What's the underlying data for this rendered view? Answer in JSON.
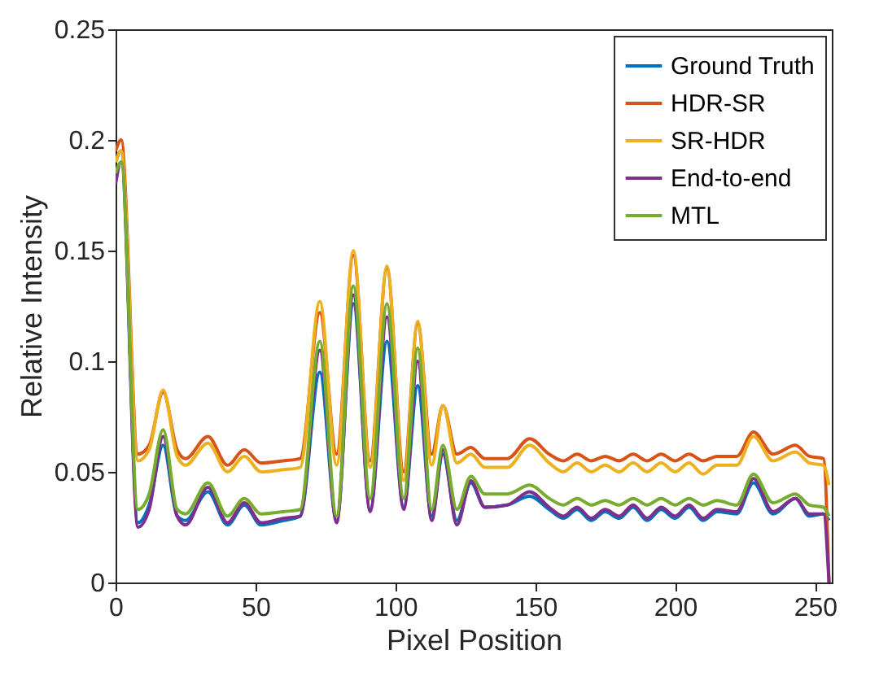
{
  "chart_data": {
    "type": "line",
    "xlabel": "Pixel Position",
    "ylabel": "Relative Intensity",
    "x": [
      0,
      2,
      8,
      12,
      17,
      22,
      25,
      33,
      40,
      46,
      52,
      60,
      66,
      73,
      79,
      85,
      91,
      97,
      103,
      108,
      113,
      117,
      122,
      127,
      132,
      140,
      148,
      155,
      160,
      165,
      170,
      175,
      180,
      185,
      190,
      195,
      200,
      205,
      210,
      215,
      222,
      228,
      235,
      243,
      248,
      253,
      255
    ],
    "series": [
      {
        "name": "Ground Truth",
        "color": "#0072bd",
        "values": [
          0.19,
          0.195,
          0.027,
          0.035,
          0.062,
          0.03,
          0.028,
          0.041,
          0.026,
          0.035,
          0.026,
          0.028,
          0.03,
          0.095,
          0.028,
          0.126,
          0.033,
          0.109,
          0.034,
          0.089,
          0.03,
          0.058,
          0.028,
          0.045,
          0.034,
          0.035,
          0.039,
          0.033,
          0.029,
          0.033,
          0.028,
          0.032,
          0.029,
          0.034,
          0.028,
          0.033,
          0.029,
          0.034,
          0.028,
          0.032,
          0.031,
          0.045,
          0.031,
          0.038,
          0.03,
          0.031,
          0.028
        ]
      },
      {
        "name": "HDR-SR",
        "color": "#d95319",
        "values": [
          0.195,
          0.2,
          0.058,
          0.062,
          0.086,
          0.06,
          0.056,
          0.066,
          0.053,
          0.06,
          0.054,
          0.055,
          0.056,
          0.122,
          0.058,
          0.148,
          0.055,
          0.142,
          0.05,
          0.117,
          0.058,
          0.08,
          0.058,
          0.061,
          0.056,
          0.056,
          0.065,
          0.058,
          0.055,
          0.058,
          0.055,
          0.057,
          0.055,
          0.058,
          0.055,
          0.058,
          0.055,
          0.058,
          0.055,
          0.057,
          0.057,
          0.068,
          0.058,
          0.062,
          0.057,
          0.056,
          0.0
        ]
      },
      {
        "name": "SR-HDR",
        "color": "#edb120",
        "values": [
          0.19,
          0.195,
          0.055,
          0.06,
          0.087,
          0.057,
          0.053,
          0.063,
          0.05,
          0.057,
          0.05,
          0.051,
          0.052,
          0.127,
          0.053,
          0.15,
          0.052,
          0.143,
          0.046,
          0.118,
          0.053,
          0.08,
          0.054,
          0.058,
          0.052,
          0.052,
          0.062,
          0.054,
          0.05,
          0.054,
          0.05,
          0.053,
          0.05,
          0.054,
          0.05,
          0.054,
          0.05,
          0.054,
          0.049,
          0.053,
          0.053,
          0.066,
          0.055,
          0.059,
          0.054,
          0.053,
          0.044
        ]
      },
      {
        "name": "End-to-end",
        "color": "#7e2f8e",
        "values": [
          0.18,
          0.19,
          0.025,
          0.033,
          0.066,
          0.03,
          0.026,
          0.043,
          0.027,
          0.036,
          0.027,
          0.029,
          0.03,
          0.105,
          0.027,
          0.13,
          0.032,
          0.12,
          0.033,
          0.1,
          0.028,
          0.06,
          0.026,
          0.046,
          0.034,
          0.035,
          0.041,
          0.034,
          0.03,
          0.034,
          0.029,
          0.033,
          0.03,
          0.035,
          0.029,
          0.034,
          0.03,
          0.035,
          0.029,
          0.033,
          0.032,
          0.047,
          0.032,
          0.038,
          0.031,
          0.031,
          0.0
        ]
      },
      {
        "name": "MTL",
        "color": "#77ac30",
        "values": [
          0.185,
          0.19,
          0.033,
          0.04,
          0.069,
          0.033,
          0.031,
          0.045,
          0.03,
          0.038,
          0.031,
          0.032,
          0.033,
          0.109,
          0.03,
          0.134,
          0.038,
          0.126,
          0.038,
          0.106,
          0.033,
          0.062,
          0.033,
          0.048,
          0.04,
          0.04,
          0.044,
          0.038,
          0.035,
          0.038,
          0.035,
          0.037,
          0.035,
          0.038,
          0.035,
          0.038,
          0.035,
          0.038,
          0.035,
          0.037,
          0.035,
          0.049,
          0.036,
          0.04,
          0.035,
          0.034,
          0.03
        ]
      }
    ],
    "xlim": [
      0,
      256
    ],
    "xticks": [
      0,
      50,
      100,
      150,
      200,
      250
    ],
    "ylim": [
      0,
      0.25
    ],
    "yticks": [
      0,
      0.05,
      0.1,
      0.15,
      0.2,
      0.25
    ],
    "legend": "top right",
    "grid": false,
    "line_style": "solid",
    "marker": "none"
  }
}
